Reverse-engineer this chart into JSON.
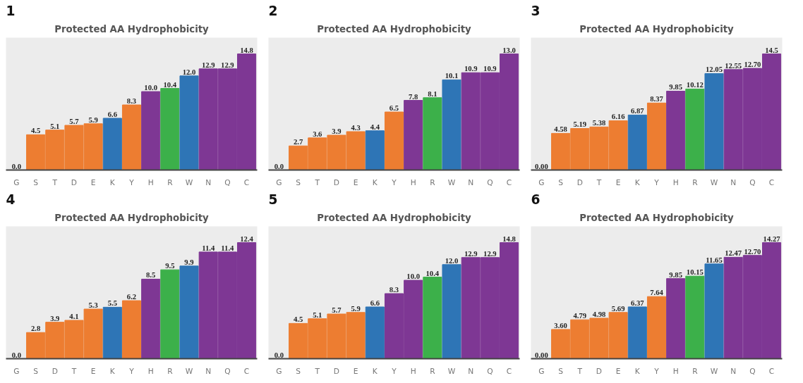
{
  "chart_data": [
    {
      "type": "bar",
      "title": "Protected AA Hydrophobicity",
      "annotations": [
        "1"
      ],
      "data_labels": true,
      "categories": [
        "G",
        "S",
        "T",
        "D",
        "E",
        "K",
        "Y",
        "H",
        "R",
        "W",
        "N",
        "Q",
        "C"
      ],
      "values": [
        0.0,
        4.5,
        5.1,
        5.7,
        5.9,
        6.6,
        8.3,
        10.0,
        10.4,
        12.0,
        12.9,
        12.9,
        14.8
      ],
      "value_labels": [
        "0.0",
        "4.5",
        "5.1",
        "5.7",
        "5.9",
        "6.6",
        "8.3",
        "10.0",
        "10.4",
        "12.0",
        "12.9",
        "12.9",
        "14.8"
      ],
      "colors": [
        "#ed7d31",
        "#ed7d31",
        "#ed7d31",
        "#ed7d31",
        "#ed7d31",
        "#2e75b6",
        "#ed7d31",
        "#7e3794",
        "#3cb04a",
        "#2e75b6",
        "#7e3794",
        "#7e3794",
        "#7e3794"
      ]
    },
    {
      "type": "bar",
      "title": "Protected AA Hydrophobicity",
      "annotations": [
        "2"
      ],
      "data_labels": true,
      "categories": [
        "G",
        "S",
        "T",
        "D",
        "E",
        "K",
        "Y",
        "H",
        "R",
        "W",
        "N",
        "Q",
        "C"
      ],
      "values": [
        0.0,
        2.7,
        3.6,
        3.9,
        4.3,
        4.4,
        6.5,
        7.8,
        8.1,
        10.1,
        10.9,
        10.9,
        13.0
      ],
      "value_labels": [
        "0.0",
        "2.7",
        "3.6",
        "3.9",
        "4.3",
        "4.4",
        "6.5",
        "7.8",
        "8.1",
        "10.1",
        "10.9",
        "10.9",
        "13.0"
      ],
      "colors": [
        "#ed7d31",
        "#ed7d31",
        "#ed7d31",
        "#ed7d31",
        "#ed7d31",
        "#2e75b6",
        "#ed7d31",
        "#7e3794",
        "#3cb04a",
        "#2e75b6",
        "#7e3794",
        "#7e3794",
        "#7e3794"
      ]
    },
    {
      "type": "bar",
      "title": "Protected AA Hydrophobicity",
      "annotations": [
        "3"
      ],
      "data_labels": true,
      "categories": [
        "G",
        "S",
        "D",
        "T",
        "E",
        "K",
        "Y",
        "H",
        "R",
        "W",
        "N",
        "Q",
        "C"
      ],
      "values": [
        0.0,
        4.58,
        5.19,
        5.38,
        6.16,
        6.87,
        8.37,
        9.85,
        10.12,
        12.05,
        12.55,
        12.7,
        14.5
      ],
      "value_labels": [
        "0.00",
        "4.58",
        "5.19",
        "5.38",
        "6.16",
        "6.87",
        "8.37",
        "9.85",
        "10.12",
        "12.05",
        "12.55",
        "12.70",
        "14.5"
      ],
      "colors": [
        "#ed7d31",
        "#ed7d31",
        "#ed7d31",
        "#ed7d31",
        "#ed7d31",
        "#2e75b6",
        "#ed7d31",
        "#7e3794",
        "#3cb04a",
        "#2e75b6",
        "#7e3794",
        "#7e3794",
        "#7e3794"
      ]
    },
    {
      "type": "bar",
      "title": "Protected AA Hydrophobicity",
      "annotations": [
        "4"
      ],
      "data_labels": true,
      "categories": [
        "G",
        "S",
        "D",
        "T",
        "E",
        "K",
        "Y",
        "H",
        "R",
        "W",
        "N",
        "Q",
        "C"
      ],
      "values": [
        0.0,
        2.8,
        3.9,
        4.1,
        5.3,
        5.5,
        6.2,
        8.5,
        9.5,
        9.9,
        11.4,
        11.4,
        12.4
      ],
      "value_labels": [
        "0.0",
        "2.8",
        "3.9",
        "4.1",
        "5.3",
        "5.5",
        "6.2",
        "8.5",
        "9.5",
        "9.9",
        "11.4",
        "11.4",
        "12.4"
      ],
      "colors": [
        "#ed7d31",
        "#ed7d31",
        "#ed7d31",
        "#ed7d31",
        "#ed7d31",
        "#2e75b6",
        "#ed7d31",
        "#7e3794",
        "#3cb04a",
        "#2e75b6",
        "#7e3794",
        "#7e3794",
        "#7e3794"
      ]
    },
    {
      "type": "bar",
      "title": "Protected AA Hydrophobicity",
      "annotations": [
        "5"
      ],
      "data_labels": true,
      "categories": [
        "G",
        "S",
        "T",
        "D",
        "E",
        "K",
        "Y",
        "H",
        "R",
        "W",
        "N",
        "Q",
        "C"
      ],
      "values": [
        0.0,
        4.5,
        5.1,
        5.7,
        5.9,
        6.6,
        8.3,
        10.0,
        10.4,
        12.0,
        12.9,
        12.9,
        14.8
      ],
      "value_labels": [
        "0.0",
        "4.5",
        "5.1",
        "5.7",
        "5.9",
        "6.6",
        "8.3",
        "10.0",
        "10.4",
        "12.0",
        "12.9",
        "12.9",
        "14.8"
      ],
      "colors": [
        "#ed7d31",
        "#ed7d31",
        "#ed7d31",
        "#ed7d31",
        "#ed7d31",
        "#2e75b6",
        "#7e3794",
        "#7e3794",
        "#3cb04a",
        "#2e75b6",
        "#7e3794",
        "#7e3794",
        "#7e3794"
      ]
    },
    {
      "type": "bar",
      "title": "Protected AA Hydrophobicity",
      "annotations": [
        "6"
      ],
      "data_labels": true,
      "categories": [
        "G",
        "S",
        "T",
        "D",
        "E",
        "K",
        "Y",
        "H",
        "R",
        "W",
        "N",
        "Q",
        "C"
      ],
      "values": [
        0.0,
        3.6,
        4.79,
        4.98,
        5.69,
        6.37,
        7.64,
        9.85,
        10.15,
        11.65,
        12.47,
        12.7,
        14.27
      ],
      "value_labels": [
        "0.00",
        "3.60",
        "4.79",
        "4.98",
        "5.69",
        "6.37",
        "7.64",
        "9.85",
        "10.15",
        "11.65",
        "12.47",
        "12.70",
        "14.27"
      ],
      "colors": [
        "#ed7d31",
        "#ed7d31",
        "#ed7d31",
        "#ed7d31",
        "#ed7d31",
        "#2e75b6",
        "#ed7d31",
        "#7e3794",
        "#3cb04a",
        "#2e75b6",
        "#7e3794",
        "#7e3794",
        "#7e3794"
      ]
    }
  ]
}
